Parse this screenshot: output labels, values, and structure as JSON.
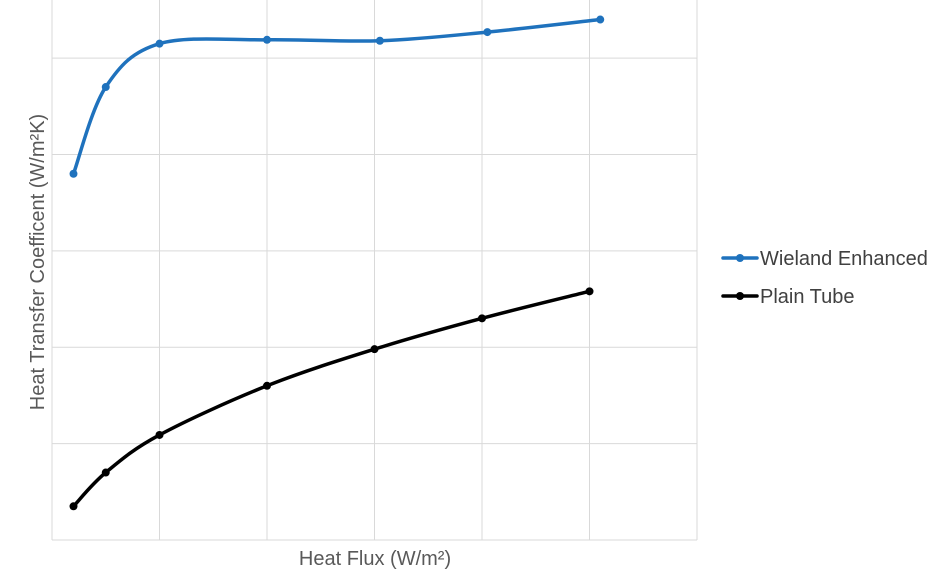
{
  "chart_data": {
    "type": "line",
    "title": "",
    "xlabel": "Heat Flux (W/m²)",
    "ylabel": "Heat Transfer Coefficent (W/m²K)",
    "x_tick_labels_shown": false,
    "y_tick_labels_shown": false,
    "grid": true,
    "legend_position": "right",
    "xlim": [
      0,
      6
    ],
    "ylim": [
      0,
      5.8
    ],
    "series": [
      {
        "name": "Wieland Enhanced",
        "color": "#1f72bd",
        "x": [
          0.2,
          0.5,
          1.0,
          2.0,
          3.05,
          4.05,
          5.1
        ],
        "y": [
          3.8,
          4.7,
          5.15,
          5.19,
          5.18,
          5.27,
          5.4
        ]
      },
      {
        "name": "Plain Tube",
        "color": "#000000",
        "x": [
          0.2,
          0.5,
          1.0,
          2.0,
          3.0,
          4.0,
          5.0
        ],
        "y": [
          0.35,
          0.7,
          1.09,
          1.6,
          1.98,
          2.3,
          2.58
        ]
      }
    ]
  }
}
